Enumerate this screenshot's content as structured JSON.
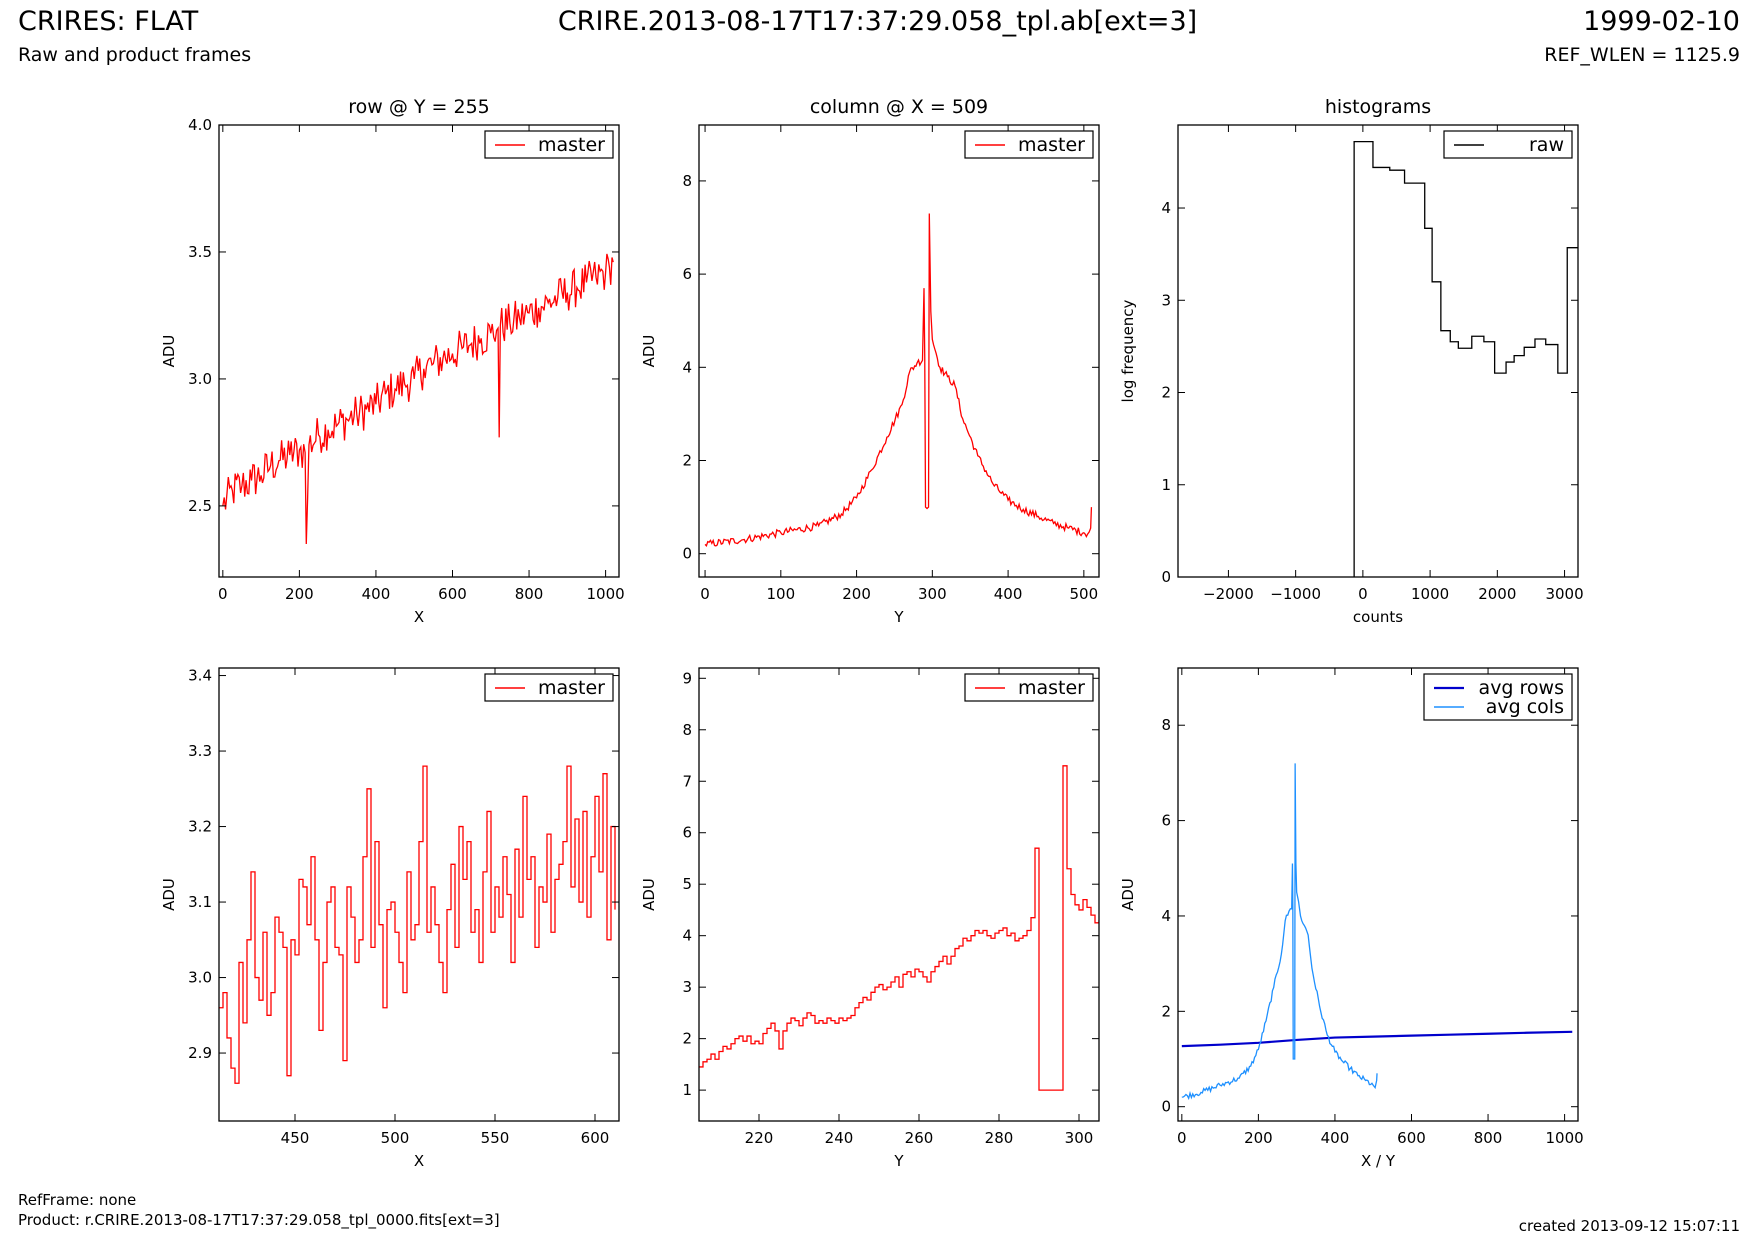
{
  "header": {
    "title": "CRIRES: FLAT",
    "subtitle": "Raw and product frames",
    "file": "CRIRE.2013-08-17T17:37:29.058_tpl.ab[ext=3]",
    "date": "1999-02-10",
    "ref_wlen": "REF_WLEN = 1125.9"
  },
  "footer": {
    "refframe": "RefFrame: none",
    "product": "Product: r.CRIRE.2013-08-17T17:37:29.058_tpl_0000.fits[ext=3]",
    "created": "created 2013-09-12 15:07:11"
  },
  "colors": {
    "master": "#ff0000",
    "raw": "#000000",
    "avg_rows": "#0000cc",
    "avg_cols": "#1e90ff"
  },
  "chart_data": [
    {
      "type": "line",
      "title": "row @ Y = 255",
      "xlabel": "X",
      "ylabel": "ADU",
      "xlim": [
        -10,
        1035
      ],
      "ylim": [
        2.22,
        4.0
      ],
      "xticks": [
        0,
        200,
        400,
        600,
        800,
        1000
      ],
      "yticks": [
        2.5,
        3.0,
        3.5,
        4.0
      ],
      "ytick_labels": [
        "2.5",
        "3.0",
        "3.5",
        "4.0"
      ],
      "legend": "top-right",
      "series": [
        {
          "name": "master",
          "color": "#ff0000",
          "x": [
            0,
            25,
            50,
            75,
            100,
            125,
            150,
            175,
            200,
            215,
            218,
            225,
            250,
            275,
            300,
            325,
            350,
            375,
            400,
            425,
            450,
            475,
            500,
            525,
            550,
            575,
            600,
            625,
            650,
            675,
            700,
            719,
            722,
            725,
            750,
            775,
            800,
            825,
            850,
            875,
            900,
            925,
            950,
            975,
            1000,
            1010,
            1020
          ],
          "y": [
            2.5,
            2.56,
            2.58,
            2.6,
            2.62,
            2.66,
            2.68,
            2.7,
            2.72,
            2.71,
            2.35,
            2.74,
            2.78,
            2.8,
            2.82,
            2.84,
            2.86,
            2.88,
            2.9,
            2.94,
            2.96,
            2.98,
            3.0,
            3.04,
            3.06,
            3.08,
            3.1,
            3.12,
            3.14,
            3.16,
            3.18,
            3.2,
            2.77,
            3.21,
            3.22,
            3.24,
            3.26,
            3.28,
            3.3,
            3.32,
            3.34,
            3.36,
            3.38,
            3.4,
            3.42,
            3.44,
            3.46
          ],
          "noise": 0.08
        }
      ]
    },
    {
      "type": "line",
      "title": "column @ X = 509",
      "xlabel": "Y",
      "ylabel": "ADU",
      "xlim": [
        -8,
        520
      ],
      "ylim": [
        -0.5,
        9.2
      ],
      "xticks": [
        0,
        100,
        200,
        300,
        400,
        500
      ],
      "yticks": [
        0,
        2,
        4,
        6,
        8
      ],
      "legend": "top-right",
      "series": [
        {
          "name": "master",
          "color": "#ff0000",
          "x": [
            0,
            50,
            100,
            150,
            180,
            200,
            220,
            240,
            260,
            270,
            280,
            287,
            289,
            290,
            291,
            295,
            296,
            298,
            300,
            305,
            310,
            320,
            330,
            340,
            360,
            380,
            400,
            420,
            440,
            460,
            480,
            500,
            505,
            509,
            510
          ],
          "y": [
            0.2,
            0.3,
            0.45,
            0.6,
            0.85,
            1.2,
            1.8,
            2.5,
            3.2,
            3.9,
            4.1,
            4.15,
            5.7,
            4.2,
            1.0,
            1.0,
            7.3,
            5.2,
            4.6,
            4.3,
            4.0,
            3.8,
            3.6,
            2.9,
            2.1,
            1.5,
            1.15,
            0.95,
            0.8,
            0.65,
            0.55,
            0.45,
            0.42,
            0.55,
            1.0
          ],
          "noise": 0.08
        }
      ]
    },
    {
      "type": "line",
      "title": "histograms",
      "xlabel": "counts",
      "ylabel": "log frequency",
      "xlim": [
        -2750,
        3200
      ],
      "ylim": [
        0,
        4.9
      ],
      "xticks": [
        -2000,
        -1000,
        0,
        1000,
        2000,
        3000
      ],
      "xtick_labels": [
        "−2000",
        "−1000",
        "0",
        "1000",
        "2000",
        "3000"
      ],
      "yticks": [
        0,
        1,
        2,
        3,
        4
      ],
      "legend": "top-right",
      "series": [
        {
          "name": "raw",
          "color": "#000000",
          "step": true,
          "x": [
            -130,
            -130,
            150,
            150,
            400,
            400,
            620,
            620,
            800,
            800,
            920,
            920,
            1030,
            1030,
            1160,
            1160,
            1300,
            1300,
            1420,
            1420,
            1620,
            1620,
            1800,
            1800,
            1960,
            1960,
            2130,
            2130,
            2250,
            2250,
            2400,
            2400,
            2560,
            2560,
            2720,
            2720,
            2900,
            2900,
            3040,
            3040,
            3200
          ],
          "y": [
            0,
            4.72,
            4.72,
            4.44,
            4.44,
            4.41,
            4.41,
            4.27,
            4.27,
            4.27,
            4.27,
            3.78,
            3.78,
            3.2,
            3.2,
            2.67,
            2.67,
            2.55,
            2.55,
            2.48,
            2.48,
            2.61,
            2.61,
            2.55,
            2.55,
            2.21,
            2.21,
            2.33,
            2.33,
            2.4,
            2.4,
            2.49,
            2.49,
            2.58,
            2.58,
            2.52,
            2.52,
            2.21,
            2.21,
            3.57,
            3.57
          ]
        }
      ]
    },
    {
      "type": "line",
      "title": "",
      "xlabel": "X",
      "ylabel": "ADU",
      "xlim": [
        412,
        612
      ],
      "ylim": [
        2.81,
        3.41
      ],
      "xticks": [
        450,
        500,
        550,
        600
      ],
      "yticks": [
        2.9,
        3.0,
        3.1,
        3.2,
        3.3,
        3.4
      ],
      "ytick_labels": [
        "2.9",
        "3.0",
        "3.1",
        "3.2",
        "3.3",
        "3.4"
      ],
      "legend": "top-right",
      "series": [
        {
          "name": "master",
          "color": "#ff0000",
          "step": true,
          "x": [
            412,
            414,
            416,
            418,
            420,
            422,
            424,
            426,
            428,
            430,
            432,
            434,
            436,
            438,
            440,
            442,
            444,
            446,
            448,
            450,
            452,
            454,
            456,
            458,
            460,
            462,
            464,
            466,
            468,
            470,
            472,
            474,
            476,
            478,
            480,
            482,
            484,
            486,
            488,
            490,
            492,
            494,
            496,
            498,
            500,
            502,
            504,
            506,
            508,
            510,
            512,
            514,
            516,
            518,
            520,
            522,
            524,
            526,
            528,
            530,
            532,
            534,
            536,
            538,
            540,
            542,
            544,
            546,
            548,
            550,
            552,
            554,
            556,
            558,
            560,
            562,
            564,
            566,
            568,
            570,
            572,
            574,
            576,
            578,
            580,
            582,
            584,
            586,
            588,
            590,
            592,
            594,
            596,
            598,
            600,
            602,
            604,
            606,
            608,
            610
          ],
          "y": [
            2.96,
            2.98,
            2.92,
            2.88,
            2.86,
            3.02,
            2.94,
            3.05,
            3.14,
            3.0,
            2.97,
            3.06,
            2.95,
            2.98,
            3.08,
            3.06,
            3.04,
            2.87,
            3.05,
            3.03,
            3.13,
            3.12,
            3.07,
            3.16,
            3.05,
            2.93,
            3.02,
            3.1,
            3.12,
            3.04,
            3.03,
            2.89,
            3.12,
            3.08,
            3.02,
            3.05,
            3.16,
            3.25,
            3.04,
            3.18,
            3.07,
            2.96,
            3.09,
            3.1,
            3.06,
            3.02,
            2.98,
            3.14,
            3.05,
            3.07,
            3.18,
            3.28,
            3.06,
            3.12,
            3.07,
            3.02,
            2.98,
            3.09,
            3.15,
            3.04,
            3.2,
            3.13,
            3.18,
            3.06,
            3.09,
            3.02,
            3.14,
            3.22,
            3.06,
            3.12,
            3.08,
            3.16,
            3.11,
            3.02,
            3.17,
            3.08,
            3.24,
            3.13,
            3.16,
            3.04,
            3.12,
            3.1,
            3.19,
            3.06,
            3.13,
            3.15,
            3.18,
            3.28,
            3.12,
            3.21,
            3.1,
            3.22,
            3.08,
            3.16,
            3.24,
            3.14,
            3.27,
            3.05,
            3.2,
            3.09
          ]
        }
      ]
    },
    {
      "type": "line",
      "title": "",
      "xlabel": "Y",
      "ylabel": "ADU",
      "xlim": [
        205,
        305
      ],
      "ylim": [
        0.4,
        9.2
      ],
      "xticks": [
        220,
        240,
        260,
        280,
        300
      ],
      "yticks": [
        1,
        2,
        3,
        4,
        5,
        6,
        7,
        8,
        9
      ],
      "legend": "top-right",
      "series": [
        {
          "name": "master",
          "color": "#ff0000",
          "step": true,
          "x": [
            205,
            206,
            207,
            208,
            209,
            210,
            211,
            212,
            213,
            214,
            215,
            216,
            217,
            218,
            219,
            220,
            221,
            222,
            223,
            224,
            225,
            226,
            227,
            228,
            229,
            230,
            231,
            232,
            233,
            234,
            235,
            236,
            237,
            238,
            239,
            240,
            241,
            242,
            243,
            244,
            245,
            246,
            247,
            248,
            249,
            250,
            251,
            252,
            253,
            254,
            255,
            256,
            257,
            258,
            259,
            260,
            261,
            262,
            263,
            264,
            265,
            266,
            267,
            268,
            269,
            270,
            271,
            272,
            273,
            274,
            275,
            276,
            277,
            278,
            279,
            280,
            281,
            282,
            283,
            284,
            285,
            286,
            287,
            288,
            289,
            290,
            291,
            292,
            293,
            294,
            295,
            296,
            297,
            298,
            299,
            300,
            301,
            302,
            303,
            304,
            305
          ],
          "y": [
            1.45,
            1.55,
            1.6,
            1.7,
            1.6,
            1.75,
            1.85,
            1.8,
            1.9,
            2.0,
            2.05,
            1.95,
            2.05,
            1.9,
            1.95,
            1.9,
            2.1,
            2.2,
            2.3,
            2.15,
            1.8,
            2.15,
            2.3,
            2.4,
            2.35,
            2.25,
            2.4,
            2.5,
            2.45,
            2.3,
            2.35,
            2.3,
            2.4,
            2.35,
            2.3,
            2.4,
            2.35,
            2.4,
            2.45,
            2.6,
            2.7,
            2.8,
            2.75,
            2.9,
            3.0,
            3.05,
            2.95,
            3.0,
            3.1,
            3.2,
            3.0,
            3.25,
            3.3,
            3.2,
            3.35,
            3.3,
            3.2,
            3.1,
            3.3,
            3.4,
            3.5,
            3.6,
            3.45,
            3.6,
            3.75,
            3.8,
            3.95,
            3.9,
            4.0,
            4.1,
            4.05,
            4.1,
            4.0,
            3.95,
            4.05,
            4.1,
            4.15,
            4.0,
            4.05,
            3.9,
            3.95,
            4.0,
            4.1,
            4.35,
            5.7,
            1.0,
            1.0,
            1.0,
            1.0,
            1.0,
            1.0,
            7.3,
            5.3,
            4.8,
            4.6,
            4.5,
            4.7,
            4.55,
            4.4,
            4.25,
            4.3
          ]
        }
      ]
    },
    {
      "type": "line",
      "title": "",
      "xlabel": "X / Y",
      "ylabel": "ADU",
      "xlim": [
        -10,
        1035
      ],
      "ylim": [
        -0.3,
        9.2
      ],
      "xticks": [
        0,
        200,
        400,
        600,
        800,
        1000
      ],
      "yticks": [
        0,
        2,
        4,
        6,
        8
      ],
      "legend": "top-right",
      "series": [
        {
          "name": "avg rows",
          "color": "#0000cc",
          "lw": 2.2,
          "x": [
            0,
            100,
            200,
            300,
            400,
            500,
            600,
            700,
            800,
            900,
            1020
          ],
          "y": [
            1.27,
            1.3,
            1.34,
            1.4,
            1.45,
            1.47,
            1.49,
            1.51,
            1.53,
            1.55,
            1.57
          ]
        },
        {
          "name": "avg cols",
          "color": "#1e90ff",
          "x": [
            0,
            50,
            100,
            150,
            180,
            200,
            220,
            240,
            260,
            270,
            280,
            287,
            289,
            290,
            291,
            295,
            296,
            298,
            300,
            305,
            310,
            320,
            330,
            340,
            360,
            380,
            400,
            420,
            440,
            460,
            480,
            500,
            505,
            509,
            510
          ],
          "y": [
            0.2,
            0.3,
            0.45,
            0.6,
            0.85,
            1.2,
            1.8,
            2.5,
            3.2,
            3.9,
            4.1,
            4.15,
            5.1,
            4.2,
            1.0,
            1.0,
            7.2,
            5.1,
            4.5,
            4.3,
            4.0,
            3.8,
            3.6,
            2.9,
            2.1,
            1.5,
            1.15,
            0.95,
            0.8,
            0.65,
            0.55,
            0.45,
            0.4,
            0.55,
            0.7
          ],
          "noise": 0.06
        }
      ]
    }
  ]
}
